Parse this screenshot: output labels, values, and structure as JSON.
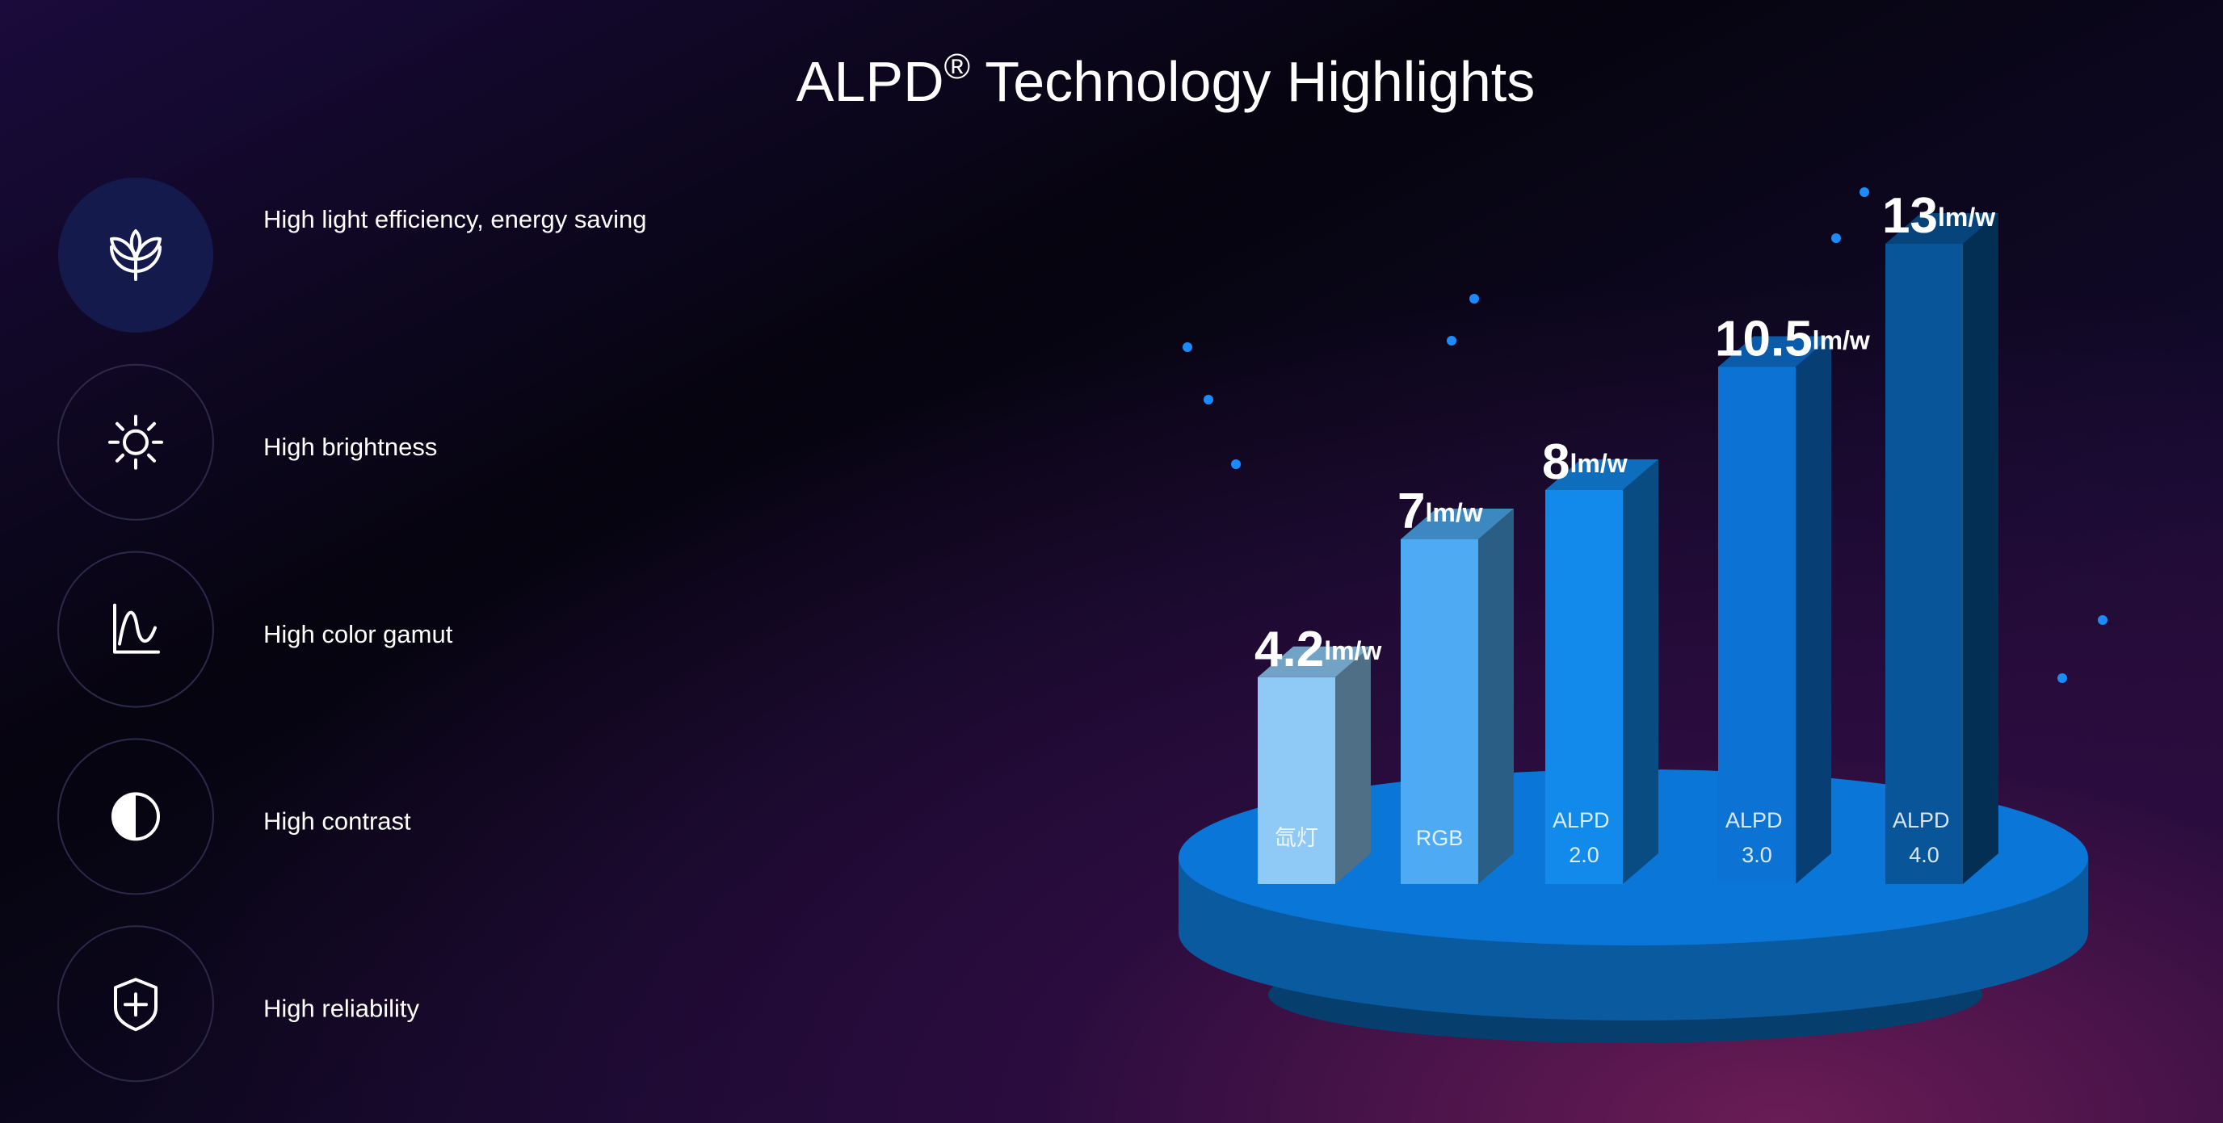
{
  "title": [
    "ALPD",
    "®",
    " Technology Highlights"
  ],
  "features": [
    "High light efficiency, energy saving",
    "High brightness",
    "High color gamut",
    "High contrast",
    "High reliability"
  ],
  "chart_data": {
    "type": "bar",
    "categories": [
      "氙灯",
      "RGB",
      "ALPD 2.0",
      "ALPD 3.0",
      "ALPD 4.0"
    ],
    "values": [
      4.2,
      7,
      8,
      10.5,
      13
    ],
    "unit": "lm/w",
    "colors": [
      "#8fcaf6",
      "#4eaaf2",
      "#118aec",
      "#0c72d4",
      "#08559a"
    ]
  }
}
